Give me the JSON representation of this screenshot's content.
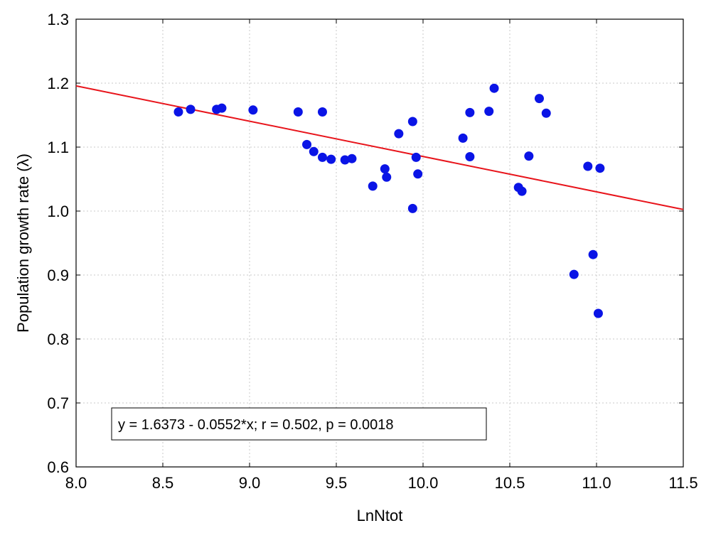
{
  "chart_data": {
    "type": "scatter",
    "title": "",
    "xlabel": "LnNtot",
    "ylabel": "Population growth rate (λ)",
    "xlim": [
      8.0,
      11.5
    ],
    "ylim": [
      0.6,
      1.3
    ],
    "x_ticks": [
      "8.0",
      "8.5",
      "9.0",
      "9.5",
      "10.0",
      "10.5",
      "11.0",
      "11.5"
    ],
    "y_ticks": [
      "0.6",
      "0.7",
      "0.8",
      "0.9",
      "1.0",
      "1.1",
      "1.2",
      "1.3"
    ],
    "grid": true,
    "colors": {
      "points": "#0a14e6",
      "fit": "#e8141b"
    },
    "regression": {
      "intercept": 1.6373,
      "slope": -0.0552
    },
    "annotation": "y = 1.6373 - 0.0552*x; r = 0.502, p = 0.0018",
    "points": [
      [
        8.59,
        1.155
      ],
      [
        8.66,
        1.159
      ],
      [
        8.81,
        1.159
      ],
      [
        8.84,
        1.161
      ],
      [
        9.02,
        1.158
      ],
      [
        9.28,
        1.155
      ],
      [
        9.42,
        1.155
      ],
      [
        9.33,
        1.104
      ],
      [
        9.37,
        1.093
      ],
      [
        9.42,
        1.084
      ],
      [
        9.47,
        1.081
      ],
      [
        9.55,
        1.08
      ],
      [
        9.59,
        1.082
      ],
      [
        9.71,
        1.039
      ],
      [
        9.78,
        1.066
      ],
      [
        9.79,
        1.053
      ],
      [
        9.86,
        1.121
      ],
      [
        9.94,
        1.14
      ],
      [
        9.96,
        1.084
      ],
      [
        9.97,
        1.058
      ],
      [
        9.94,
        1.004
      ],
      [
        10.23,
        1.114
      ],
      [
        10.27,
        1.154
      ],
      [
        10.27,
        1.085
      ],
      [
        10.38,
        1.156
      ],
      [
        10.41,
        1.192
      ],
      [
        10.55,
        1.037
      ],
      [
        10.57,
        1.031
      ],
      [
        10.61,
        1.086
      ],
      [
        10.67,
        1.176
      ],
      [
        10.71,
        1.153
      ],
      [
        10.87,
        0.901
      ],
      [
        10.95,
        1.07
      ],
      [
        10.98,
        0.932
      ],
      [
        11.01,
        0.84
      ],
      [
        11.02,
        1.067
      ]
    ]
  }
}
